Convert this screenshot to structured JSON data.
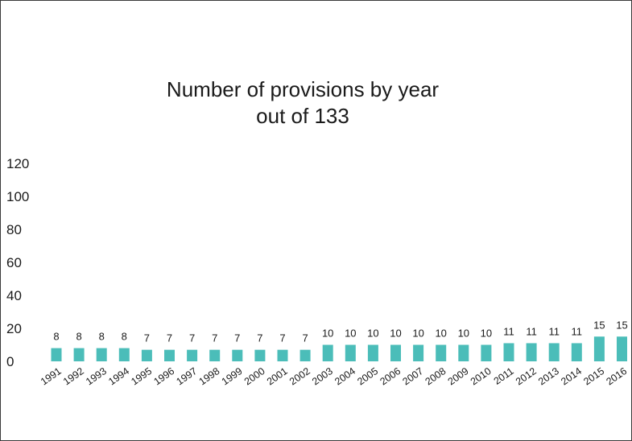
{
  "chart_data": {
    "type": "bar",
    "title": "Number of provisions by year",
    "subtitle": "out of 133",
    "xlabel": "",
    "ylabel": "",
    "ylim": [
      0,
      120
    ],
    "yticks": [
      0,
      20,
      40,
      60,
      80,
      100,
      120
    ],
    "grid": false,
    "legend": "none",
    "bar_color": "#4bbdb9",
    "categories": [
      "1991",
      "1992",
      "1993",
      "1994",
      "1995",
      "1996",
      "1997",
      "1998",
      "1999",
      "2000",
      "2001",
      "2002",
      "2003",
      "2004",
      "2005",
      "2006",
      "2007",
      "2008",
      "2009",
      "2010",
      "2011",
      "2012",
      "2013",
      "2014",
      "2015",
      "2016"
    ],
    "values": [
      8,
      8,
      8,
      8,
      7,
      7,
      7,
      7,
      7,
      7,
      7,
      7,
      10,
      10,
      10,
      10,
      10,
      10,
      10,
      10,
      11,
      11,
      11,
      11,
      15,
      15
    ]
  }
}
